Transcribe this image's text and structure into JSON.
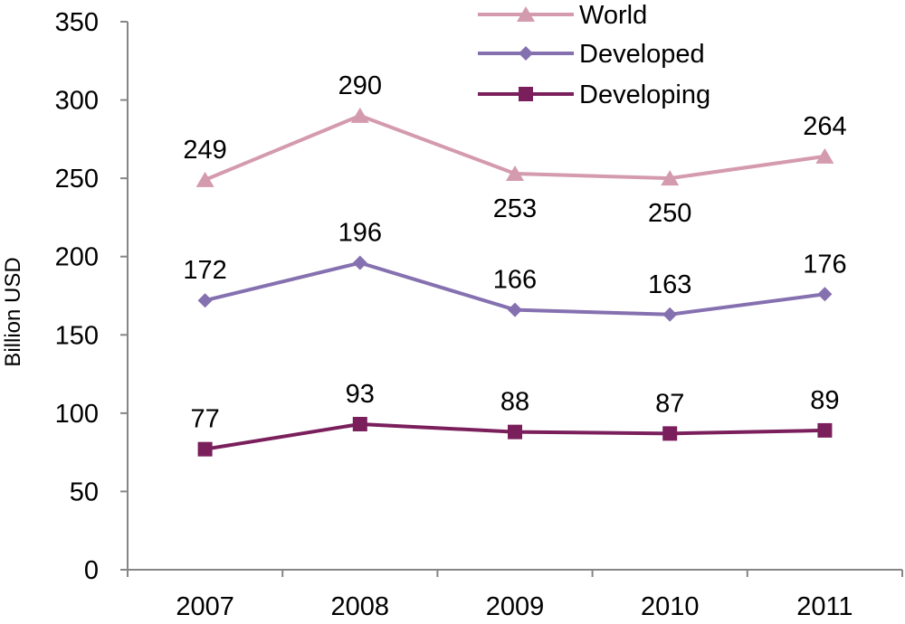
{
  "chart_data": {
    "type": "line",
    "title": "",
    "xlabel": "",
    "ylabel": "Billion USD",
    "categories": [
      "2007",
      "2008",
      "2009",
      "2010",
      "2011"
    ],
    "ylim": [
      0,
      350
    ],
    "yticks": [
      0,
      50,
      100,
      150,
      200,
      250,
      300,
      350
    ],
    "grid": false,
    "legend_position": "top",
    "series": [
      {
        "name": "World",
        "values": [
          249,
          290,
          253,
          250,
          264
        ],
        "color": "#d49aad",
        "marker": "triangle",
        "label_position": [
          "above",
          "above",
          "below",
          "below",
          "above"
        ]
      },
      {
        "name": "Developed",
        "values": [
          172,
          196,
          166,
          163,
          176
        ],
        "color": "#8570b0",
        "marker": "diamond",
        "label_position": [
          "above",
          "above",
          "above",
          "above",
          "above"
        ]
      },
      {
        "name": "Developing",
        "values": [
          77,
          93,
          88,
          87,
          89
        ],
        "color": "#7a1f5c",
        "marker": "square",
        "label_position": [
          "above",
          "above",
          "above",
          "above",
          "above"
        ]
      }
    ]
  }
}
